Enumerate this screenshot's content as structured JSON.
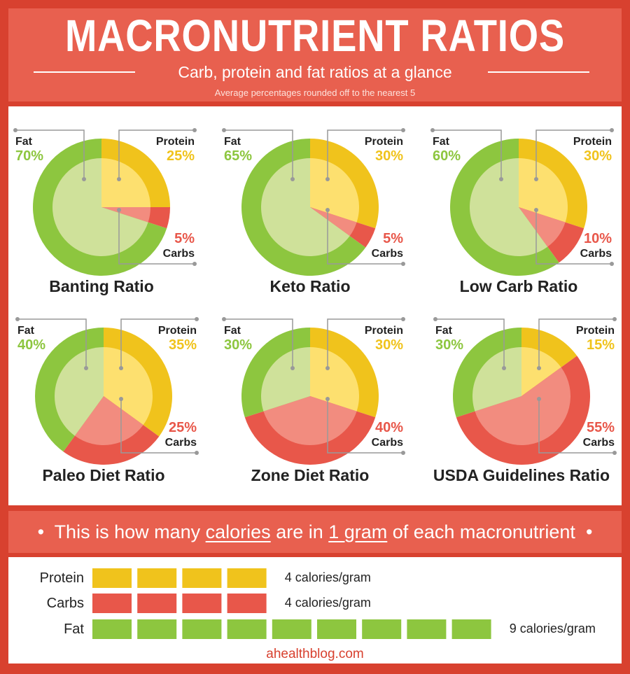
{
  "header": {
    "title": "MACRONUTRIENT RATIOS",
    "subtitle": "Carb, protein and fat ratios at a glance",
    "note": "Average percentages rounded off to the nearest 5"
  },
  "colors": {
    "protein": "#f0c31c",
    "protein_light": "#fde06f",
    "carbs": "#e8574a",
    "carbs_light": "#f28c7f",
    "fat": "#8dc63f",
    "fat_light": "#cfe19a",
    "frame": "#d8412f"
  },
  "labels": {
    "fat": "Fat",
    "protein": "Protein",
    "carbs": "Carbs"
  },
  "chart_data": [
    {
      "type": "pie",
      "title": "Banting Ratio",
      "categories": [
        "Protein",
        "Carbs",
        "Fat"
      ],
      "values": [
        25,
        5,
        70
      ],
      "value_labels": [
        "25%",
        "5%",
        "70%"
      ]
    },
    {
      "type": "pie",
      "title": "Keto Ratio",
      "categories": [
        "Protein",
        "Carbs",
        "Fat"
      ],
      "values": [
        30,
        5,
        65
      ],
      "value_labels": [
        "30%",
        "5%",
        "65%"
      ]
    },
    {
      "type": "pie",
      "title": "Low Carb Ratio",
      "categories": [
        "Protein",
        "Carbs",
        "Fat"
      ],
      "values": [
        30,
        10,
        60
      ],
      "value_labels": [
        "30%",
        "10%",
        "60%"
      ]
    },
    {
      "type": "pie",
      "title": "Paleo Diet Ratio",
      "categories": [
        "Protein",
        "Carbs",
        "Fat"
      ],
      "values": [
        35,
        25,
        40
      ],
      "value_labels": [
        "35%",
        "25%",
        "40%"
      ]
    },
    {
      "type": "pie",
      "title": "Zone Diet Ratio",
      "categories": [
        "Protein",
        "Carbs",
        "Fat"
      ],
      "values": [
        30,
        40,
        30
      ],
      "value_labels": [
        "30%",
        "40%",
        "30%"
      ]
    },
    {
      "type": "pie",
      "title": "USDA Guidelines Ratio",
      "categories": [
        "Protein",
        "Carbs",
        "Fat"
      ],
      "values": [
        15,
        55,
        30
      ],
      "value_labels": [
        "15%",
        "55%",
        "30%"
      ]
    },
    {
      "type": "bar",
      "title": "",
      "categories": [
        "Protein",
        "Carbs",
        "Fat"
      ],
      "values": [
        4,
        4,
        9
      ],
      "value_labels": [
        "4 calories/gram",
        "4 calories/gram",
        "9 calories/gram"
      ]
    }
  ],
  "band": {
    "pre": "This is how many ",
    "calories": "calories",
    "mid": " are in ",
    "gram": "1 gram",
    "post": " of each macronutrient",
    "bullet": "•"
  },
  "credit": "ahealthblog.com"
}
